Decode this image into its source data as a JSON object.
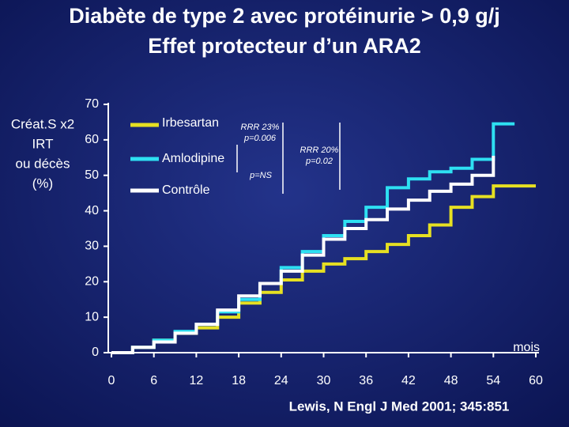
{
  "chart_data": {
    "type": "line",
    "step": "after",
    "title": [
      "Diabète de type 2 avec protéinurie > 0,9 g/j",
      "Effet protecteur d’un ARA2"
    ],
    "y_label": [
      "Créat.S x2",
      "IRT",
      "ou décès",
      "(%)"
    ],
    "x_label": "mois",
    "source": "Lewis, N Engl J Med 2001; 345:851",
    "x": [
      0,
      3,
      6,
      9,
      12,
      15,
      18,
      21,
      24,
      27,
      30,
      33,
      36,
      39,
      42,
      45,
      48,
      51,
      54,
      57,
      60
    ],
    "series": [
      {
        "name": "Irbesartan",
        "color": "#e6e022",
        "values": [
          0,
          1.5,
          3.5,
          5.5,
          7,
          10,
          14,
          17,
          20.5,
          23,
          25,
          26.5,
          28.5,
          30.5,
          33,
          36,
          41,
          44,
          47,
          47,
          47
        ]
      },
      {
        "name": "Amlodipine",
        "color": "#2ee0f2",
        "values": [
          0,
          1.5,
          3.5,
          6,
          8,
          11.5,
          15,
          19.5,
          24,
          28.5,
          33,
          37,
          41,
          46.5,
          49,
          51,
          52,
          54.5,
          64.5,
          64.5,
          null
        ]
      },
      {
        "name": "Contrôle",
        "color": "#ffffff",
        "values": [
          0,
          1.5,
          3,
          5.5,
          8,
          12,
          16,
          19.5,
          23,
          27.5,
          32,
          35,
          37.5,
          40.5,
          43,
          45.5,
          47.5,
          50,
          55.5,
          null,
          null
        ]
      }
    ],
    "annotations": [
      [
        "RRR 23%",
        "p=0.006"
      ],
      [
        "p=NS"
      ],
      [
        "RRR 20%",
        "p=0.02"
      ]
    ],
    "xlim": [
      0,
      60
    ],
    "xticks": [
      0,
      6,
      12,
      18,
      24,
      30,
      36,
      42,
      48,
      54,
      60
    ],
    "ylim": [
      0,
      70
    ],
    "yticks": [
      0,
      10,
      20,
      30,
      40,
      50,
      60,
      70
    ],
    "grid": false,
    "legend": "upper-left"
  }
}
